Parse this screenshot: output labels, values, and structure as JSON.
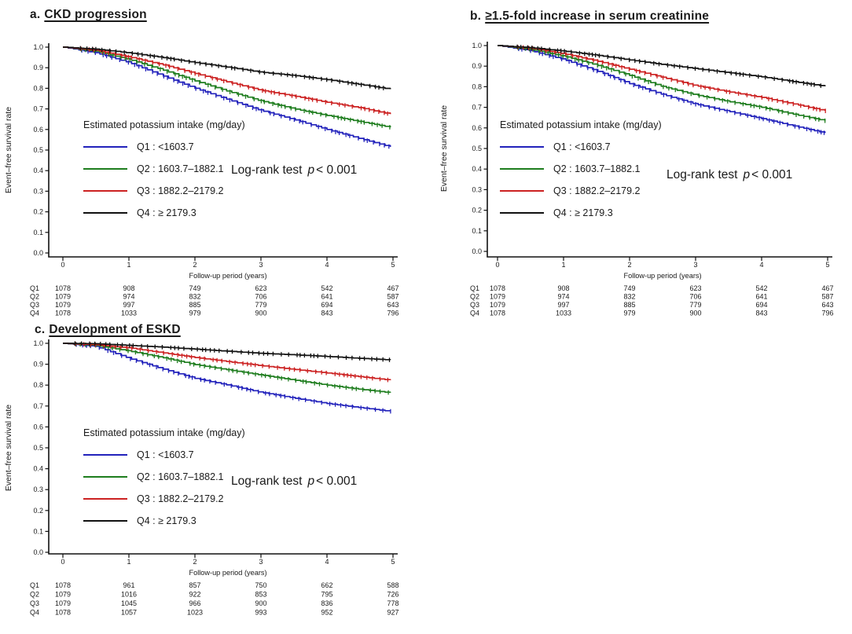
{
  "figure": {
    "y_axis_label": "Event–free survival rate",
    "x_axis_label": "Follow-up period (years)",
    "legend": {
      "header": "Estimated potassium intake (mg/day)",
      "items": [
        {
          "name": "Q1",
          "label": "Q1 : <1603.7",
          "color": "#2222bb"
        },
        {
          "name": "Q2",
          "label": "Q2 : 1603.7–1882.1",
          "color": "#1e7d1e"
        },
        {
          "name": "Q3",
          "label": "Q3 : 1882.2–2179.2",
          "color": "#cc2222"
        },
        {
          "name": "Q4",
          "label": "Q4 : ≥ 2179.3",
          "color": "#111111"
        }
      ]
    },
    "logrank": {
      "prefix": "Log-rank test",
      "p": "p",
      "value": "< 0.001"
    }
  },
  "chart_data": {
    "type": "line",
    "subtype": "kaplan-meier",
    "x": [
      0,
      0.5,
      1,
      1.5,
      2,
      2.5,
      3,
      3.5,
      4,
      4.5,
      5
    ],
    "x_tick_labels": [
      "0",
      "1",
      "2",
      "3",
      "4",
      "5"
    ],
    "y_tick_labels": [
      "0.0",
      "0.1",
      "0.2",
      "0.3",
      "0.4",
      "0.5",
      "0.6",
      "0.7",
      "0.8",
      "0.9",
      "1.0"
    ],
    "ylim": [
      0,
      1
    ],
    "xlabel": "Follow-up period (years)",
    "ylabel": "Event–free survival rate",
    "panels": [
      {
        "id": "a",
        "title_prefix": "a.",
        "title": "CKD progression",
        "logrank_p": "p < 0.001",
        "series": [
          {
            "name": "Q1",
            "color": "#2222bb",
            "y": [
              1.0,
              0.972,
              0.925,
              0.862,
              0.8,
              0.745,
              0.692,
              0.648,
              0.6,
              0.555,
              0.512
            ]
          },
          {
            "name": "Q2",
            "color": "#1e7d1e",
            "y": [
              1.0,
              0.98,
              0.94,
              0.89,
              0.836,
              0.785,
              0.738,
              0.7,
              0.668,
              0.638,
              0.608
            ]
          },
          {
            "name": "Q3",
            "color": "#cc2222",
            "y": [
              1.0,
              0.985,
              0.952,
              0.915,
              0.872,
              0.83,
              0.79,
              0.762,
              0.732,
              0.705,
              0.672
            ]
          },
          {
            "name": "Q4",
            "color": "#111111",
            "y": [
              1.0,
              0.99,
              0.972,
              0.95,
              0.925,
              0.902,
              0.878,
              0.862,
              0.842,
              0.818,
              0.794
            ]
          }
        ],
        "risk_table": {
          "time_points": [
            0,
            1,
            2,
            3,
            4,
            5
          ],
          "rows": [
            {
              "label": "Q1",
              "counts": [
                1078,
                908,
                749,
                623,
                542,
                467
              ]
            },
            {
              "label": "Q2",
              "counts": [
                1079,
                974,
                832,
                706,
                641,
                587
              ]
            },
            {
              "label": "Q3",
              "counts": [
                1079,
                997,
                885,
                779,
                694,
                643
              ]
            },
            {
              "label": "Q4",
              "counts": [
                1078,
                1033,
                979,
                900,
                843,
                796
              ]
            }
          ]
        }
      },
      {
        "id": "b",
        "title_prefix": "b.",
        "title": "≥1.5-fold increase in serum creatinine",
        "logrank_p": "p < 0.001",
        "series": [
          {
            "name": "Q1",
            "color": "#2222bb",
            "y": [
              1.0,
              0.975,
              0.932,
              0.877,
              0.815,
              0.762,
              0.715,
              0.68,
              0.645,
              0.608,
              0.572
            ]
          },
          {
            "name": "Q2",
            "color": "#1e7d1e",
            "y": [
              1.0,
              0.982,
              0.948,
              0.905,
              0.855,
              0.8,
              0.76,
              0.728,
              0.7,
              0.665,
              0.632
            ]
          },
          {
            "name": "Q3",
            "color": "#cc2222",
            "y": [
              1.0,
              0.988,
              0.96,
              0.925,
              0.885,
              0.845,
              0.805,
              0.775,
              0.748,
              0.715,
              0.68
            ]
          },
          {
            "name": "Q4",
            "color": "#111111",
            "y": [
              1.0,
              0.99,
              0.973,
              0.953,
              0.93,
              0.908,
              0.888,
              0.868,
              0.848,
              0.824,
              0.8
            ]
          }
        ],
        "risk_table": {
          "time_points": [
            0,
            1,
            2,
            3,
            4,
            5
          ],
          "rows": [
            {
              "label": "Q1",
              "counts": [
                1078,
                908,
                749,
                623,
                542,
                467
              ]
            },
            {
              "label": "Q2",
              "counts": [
                1079,
                974,
                832,
                706,
                641,
                587
              ]
            },
            {
              "label": "Q3",
              "counts": [
                1079,
                997,
                885,
                779,
                694,
                643
              ]
            },
            {
              "label": "Q4",
              "counts": [
                1078,
                1033,
                979,
                900,
                843,
                796
              ]
            }
          ]
        }
      },
      {
        "id": "c",
        "title_prefix": "c.",
        "title": "Development of ESKD",
        "logrank_p": "p < 0.001",
        "series": [
          {
            "name": "Q1",
            "color": "#2222bb",
            "y": [
              1.0,
              0.985,
              0.928,
              0.878,
              0.832,
              0.8,
              0.765,
              0.738,
              0.712,
              0.692,
              0.673
            ]
          },
          {
            "name": "Q2",
            "color": "#1e7d1e",
            "y": [
              1.0,
              0.99,
              0.963,
              0.932,
              0.898,
              0.873,
              0.848,
              0.824,
              0.8,
              0.78,
              0.762
            ]
          },
          {
            "name": "Q3",
            "color": "#cc2222",
            "y": [
              1.0,
              0.993,
              0.978,
              0.955,
              0.932,
              0.912,
              0.893,
              0.875,
              0.858,
              0.84,
              0.822
            ]
          },
          {
            "name": "Q4",
            "color": "#111111",
            "y": [
              1.0,
              0.998,
              0.99,
              0.982,
              0.972,
              0.962,
              0.952,
              0.945,
              0.937,
              0.928,
              0.92
            ]
          }
        ],
        "risk_table": {
          "time_points": [
            0,
            1,
            2,
            3,
            4,
            5
          ],
          "rows": [
            {
              "label": "Q1",
              "counts": [
                1078,
                961,
                857,
                750,
                662,
                588
              ]
            },
            {
              "label": "Q2",
              "counts": [
                1079,
                1016,
                922,
                853,
                795,
                726
              ]
            },
            {
              "label": "Q3",
              "counts": [
                1079,
                1045,
                966,
                900,
                836,
                778
              ]
            },
            {
              "label": "Q4",
              "counts": [
                1078,
                1057,
                1023,
                993,
                952,
                927
              ]
            }
          ]
        }
      }
    ]
  }
}
